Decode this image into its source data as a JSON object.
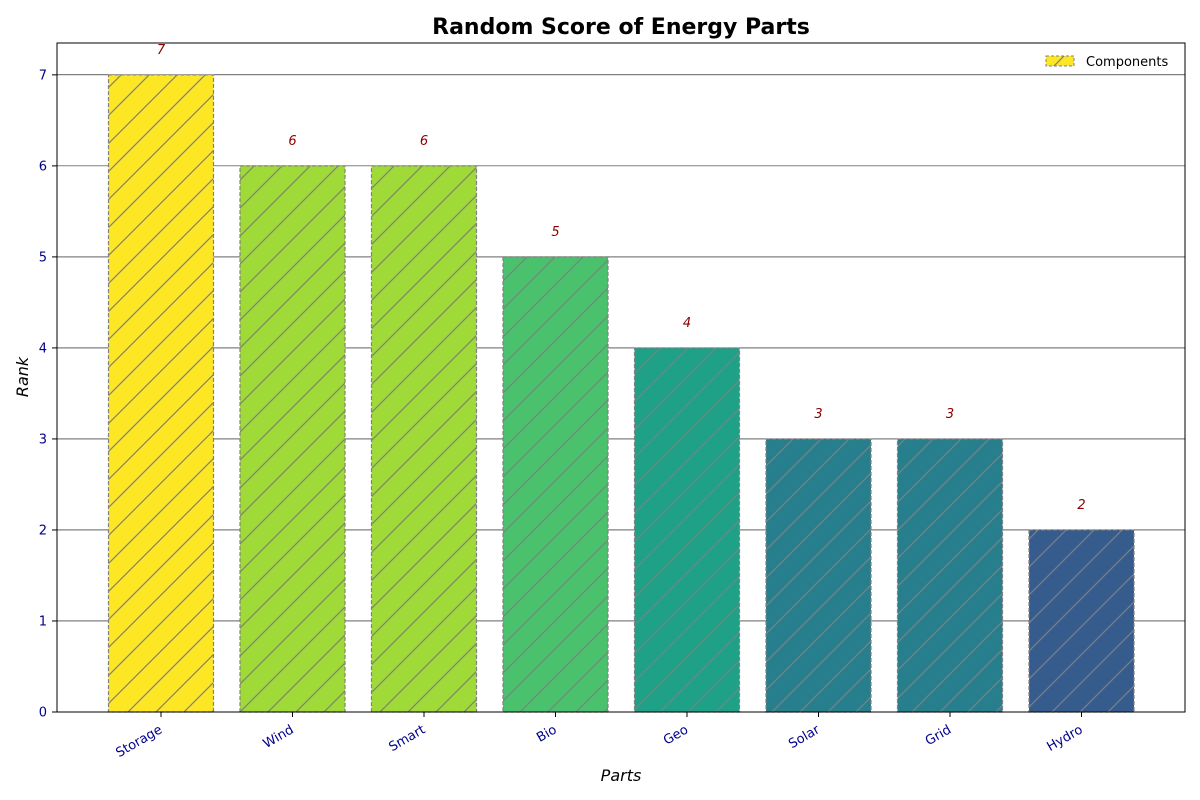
{
  "chart_data": {
    "type": "bar",
    "title": "Random Score of Energy Parts",
    "xlabel": "Parts",
    "ylabel": "Rank",
    "categories": [
      "Storage",
      "Wind",
      "Smart",
      "Bio",
      "Geo",
      "Solar",
      "Grid",
      "Hydro"
    ],
    "values": [
      7,
      6,
      6,
      5,
      4,
      3,
      3,
      2
    ],
    "data_labels": [
      "7",
      "6",
      "6",
      "5",
      "4",
      "3",
      "3",
      "2"
    ],
    "ylim": [
      0,
      7.35
    ],
    "yticks": [
      "0",
      "1",
      "2",
      "3",
      "4",
      "5",
      "6",
      "7"
    ],
    "grid": "horizontal",
    "legend": {
      "label": "Components",
      "placement": "top-right",
      "swatch_color": "#fde725"
    },
    "bar_colors": [
      "#fde725",
      "#a0da39",
      "#a0da39",
      "#4ac16d",
      "#1fa187",
      "#277f8e",
      "#277f8e",
      "#365c8d"
    ],
    "hatch": "diagonal",
    "edge_color": "#808080"
  }
}
